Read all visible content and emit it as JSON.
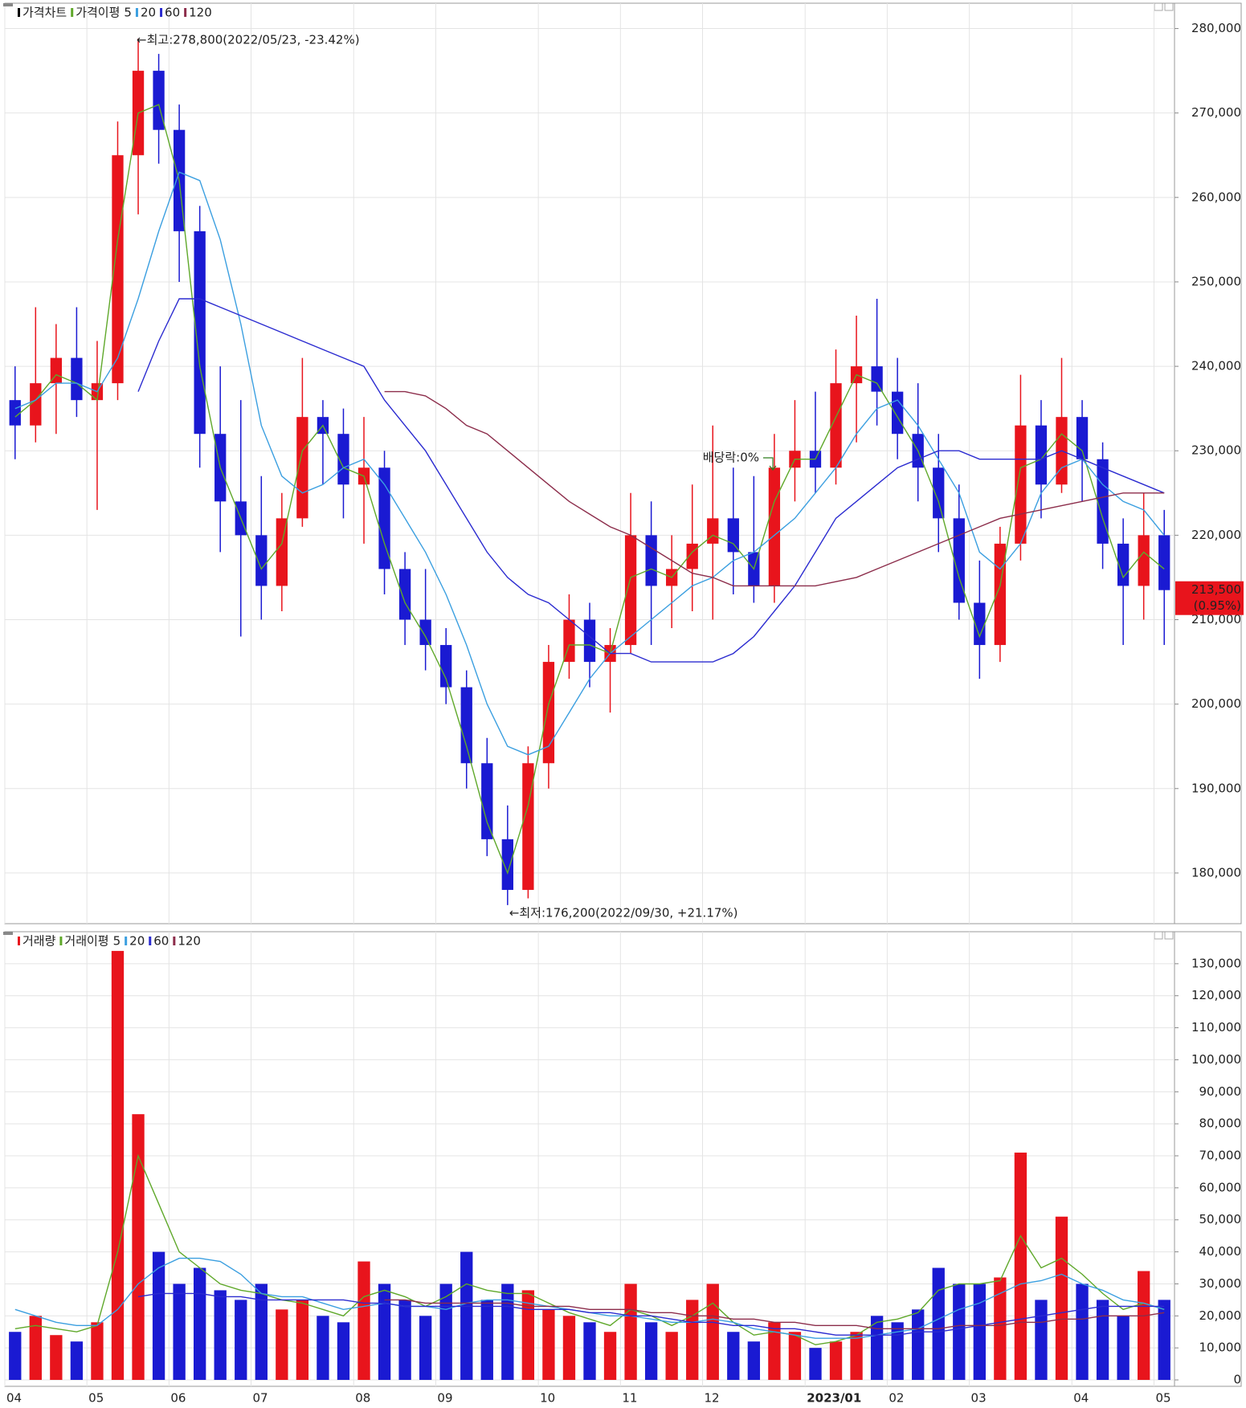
{
  "chart_data": [
    {
      "type": "candlestick",
      "title": "가격차트",
      "ma_title": "가격이평",
      "categories": [
        "04",
        null,
        null,
        null,
        "05",
        null,
        null,
        null,
        "06",
        null,
        null,
        null,
        "07",
        null,
        null,
        null,
        null,
        "08",
        null,
        null,
        null,
        "09",
        null,
        null,
        null,
        null,
        "10",
        null,
        null,
        null,
        "11",
        null,
        null,
        null,
        "12",
        null,
        null,
        null,
        null,
        "2023/01",
        null,
        null,
        null,
        "02",
        null,
        null,
        null,
        "03",
        null,
        null,
        null,
        null,
        "04",
        null,
        null,
        null,
        "05"
      ],
      "open": [
        236000,
        233000,
        238000,
        241000,
        236000,
        238000,
        265000,
        275000,
        268000,
        256000,
        232000,
        224000,
        220000,
        214000,
        222000,
        234000,
        232000,
        226000,
        228000,
        216000,
        210000,
        207000,
        202000,
        193000,
        184000,
        178000,
        193000,
        205000,
        210000,
        205000,
        207000,
        220000,
        214000,
        216000,
        219000,
        222000,
        218000,
        214000,
        228000,
        230000,
        228000,
        238000,
        240000,
        237000,
        232000,
        228000,
        222000,
        212000,
        207000,
        219000,
        233000,
        226000,
        234000,
        229000,
        219000,
        214000,
        220000
      ],
      "high": [
        240000,
        247000,
        245000,
        247000,
        243000,
        269000,
        278800,
        277000,
        271000,
        259000,
        240000,
        236000,
        227000,
        225000,
        241000,
        236000,
        235000,
        234000,
        230000,
        218000,
        216000,
        209000,
        204000,
        196000,
        188000,
        195000,
        207000,
        213000,
        212000,
        209000,
        225000,
        224000,
        220000,
        226000,
        233000,
        228000,
        227000,
        232000,
        236000,
        237000,
        242000,
        246000,
        248000,
        241000,
        238000,
        232000,
        226000,
        217000,
        221000,
        239000,
        236000,
        241000,
        236000,
        231000,
        222000,
        225000,
        223000
      ],
      "low": [
        229000,
        231000,
        232000,
        234000,
        223000,
        236000,
        258000,
        264000,
        250000,
        228000,
        218000,
        208000,
        210000,
        211000,
        221000,
        226000,
        222000,
        219000,
        213000,
        207000,
        204000,
        200000,
        190000,
        182000,
        176200,
        177000,
        190000,
        203000,
        202000,
        199000,
        206000,
        207000,
        209000,
        211000,
        210000,
        213000,
        212000,
        212000,
        224000,
        225000,
        226000,
        231000,
        233000,
        229000,
        224000,
        218000,
        210000,
        203000,
        205000,
        217000,
        222000,
        225000,
        224000,
        216000,
        207000,
        210000,
        207000
      ],
      "close": [
        233000,
        238000,
        241000,
        236000,
        238000,
        265000,
        275000,
        268000,
        256000,
        232000,
        224000,
        220000,
        214000,
        222000,
        234000,
        232000,
        226000,
        228000,
        216000,
        210000,
        207000,
        202000,
        193000,
        184000,
        178000,
        193000,
        205000,
        210000,
        205000,
        207000,
        220000,
        214000,
        216000,
        219000,
        222000,
        218000,
        214000,
        228000,
        230000,
        228000,
        238000,
        240000,
        237000,
        232000,
        228000,
        222000,
        212000,
        207000,
        219000,
        233000,
        226000,
        234000,
        229000,
        219000,
        214000,
        220000,
        213500
      ],
      "up_color": "#e8141c",
      "down_color": "#1a1ad2",
      "series": [
        {
          "name": "5",
          "color": "#5fa82a",
          "values": [
            234000,
            236000,
            239000,
            238000,
            236000,
            255000,
            270000,
            271000,
            262000,
            240000,
            228000,
            222000,
            216000,
            219000,
            230000,
            233000,
            228000,
            227000,
            219000,
            212000,
            208000,
            203000,
            195000,
            186000,
            180000,
            188000,
            200000,
            207000,
            207000,
            206000,
            215000,
            216000,
            215000,
            218000,
            220000,
            219000,
            216000,
            224000,
            229000,
            229000,
            234000,
            239000,
            238000,
            234000,
            230000,
            224000,
            215000,
            208000,
            214000,
            228000,
            229000,
            232000,
            230000,
            222000,
            215000,
            218000,
            216000
          ]
        },
        {
          "name": "20",
          "color": "#3b9fe0",
          "values": [
            235000,
            236000,
            238000,
            238000,
            237000,
            241000,
            248000,
            256000,
            263000,
            262000,
            255000,
            245000,
            233000,
            227000,
            225000,
            226000,
            228000,
            229000,
            226000,
            222000,
            218000,
            213000,
            207000,
            200000,
            195000,
            194000,
            195000,
            199000,
            203000,
            206000,
            208000,
            210000,
            212000,
            214000,
            215000,
            217000,
            218000,
            220000,
            222000,
            225000,
            228000,
            232000,
            235000,
            236000,
            233000,
            229000,
            225000,
            218000,
            216000,
            219000,
            225000,
            228000,
            229000,
            226000,
            224000,
            223000,
            220000
          ]
        },
        {
          "name": "60",
          "color": "#2b2bd0",
          "values": [
            null,
            null,
            null,
            null,
            null,
            null,
            237000,
            243000,
            248000,
            248000,
            247000,
            246000,
            245000,
            244000,
            243000,
            242000,
            241000,
            240000,
            236000,
            233000,
            230000,
            226000,
            222000,
            218000,
            215000,
            213000,
            212000,
            210000,
            208000,
            206000,
            206000,
            205000,
            205000,
            205000,
            205000,
            206000,
            208000,
            211000,
            214000,
            218000,
            222000,
            224000,
            226000,
            228000,
            229000,
            230000,
            230000,
            229000,
            229000,
            229000,
            229000,
            230000,
            229000,
            228000,
            227000,
            226000,
            225000
          ]
        },
        {
          "name": "120",
          "color": "#8c2d4b",
          "values": [
            null,
            null,
            null,
            null,
            null,
            null,
            null,
            null,
            null,
            null,
            null,
            null,
            null,
            null,
            null,
            null,
            null,
            null,
            237000,
            237000,
            236500,
            235000,
            233000,
            232000,
            230000,
            228000,
            226000,
            224000,
            222500,
            221000,
            220000,
            218500,
            217000,
            215500,
            215000,
            214000,
            214000,
            214000,
            214000,
            214000,
            214500,
            215000,
            216000,
            217000,
            218000,
            219000,
            220000,
            221000,
            222000,
            222500,
            223000,
            223500,
            224000,
            224500,
            225000,
            225000,
            225000
          ]
        }
      ],
      "ylim": [
        174000,
        283000
      ],
      "yticks": [
        {
          "value": 180000,
          "label": "180,000"
        },
        {
          "value": 190000,
          "label": "190,000"
        },
        {
          "value": 200000,
          "label": "200,000"
        },
        {
          "value": 210000,
          "label": "210,000"
        },
        {
          "value": 220000,
          "label": "220,000"
        },
        {
          "value": 230000,
          "label": "230,000"
        },
        {
          "value": 240000,
          "label": "240,000"
        },
        {
          "value": 250000,
          "label": "250,000"
        },
        {
          "value": 260000,
          "label": "260,000"
        },
        {
          "value": 270000,
          "label": "270,000"
        },
        {
          "value": 280000,
          "label": "280,000"
        }
      ],
      "grid": true,
      "annotations": {
        "high": "←최고:278,800(2022/05/23, -23.42%)",
        "low": "←최저:176,200(2022/09/30, +21.17%)",
        "dividend": "배당락:0%"
      },
      "last_price": {
        "value": 213500,
        "label": "213,500"
      },
      "last_change": "(0.95%)"
    },
    {
      "type": "bar",
      "title": "거래량",
      "ma_title": "거래이평",
      "values": [
        15000,
        20000,
        14000,
        12000,
        18000,
        134000,
        83000,
        40000,
        30000,
        35000,
        28000,
        25000,
        30000,
        22000,
        25000,
        20000,
        18000,
        37000,
        30000,
        25000,
        20000,
        30000,
        40000,
        25000,
        30000,
        28000,
        22000,
        20000,
        18000,
        15000,
        30000,
        18000,
        15000,
        25000,
        30000,
        15000,
        12000,
        18000,
        15000,
        10000,
        12000,
        15000,
        20000,
        18000,
        22000,
        35000,
        30000,
        30000,
        32000,
        71000,
        25000,
        51000,
        30000,
        25000,
        20000,
        34000,
        25000
      ],
      "series": [
        {
          "name": "5",
          "color": "#5fa82a",
          "values": [
            16000,
            17000,
            16000,
            15000,
            17000,
            40000,
            70000,
            55000,
            40000,
            35000,
            30000,
            28000,
            27000,
            25000,
            24000,
            22000,
            20000,
            26000,
            28000,
            26000,
            23000,
            26000,
            30000,
            28000,
            27000,
            27000,
            24000,
            21000,
            19000,
            17000,
            22000,
            20000,
            17000,
            20000,
            24000,
            18000,
            14000,
            15000,
            14000,
            11000,
            12000,
            14000,
            18000,
            19000,
            21000,
            28000,
            30000,
            30000,
            31000,
            45000,
            35000,
            38000,
            33000,
            27000,
            22000,
            24000,
            22000
          ]
        },
        {
          "name": "20",
          "color": "#3b9fe0",
          "values": [
            22000,
            20000,
            18000,
            17000,
            17000,
            22000,
            30000,
            35000,
            38000,
            38000,
            37000,
            33000,
            27000,
            26000,
            26000,
            24000,
            22000,
            23000,
            24000,
            23000,
            23000,
            22000,
            24000,
            25000,
            25000,
            24000,
            23000,
            22000,
            21000,
            20000,
            20000,
            19000,
            18000,
            18000,
            19000,
            18000,
            16000,
            15000,
            14000,
            13000,
            13000,
            13000,
            14000,
            15000,
            16000,
            19000,
            22000,
            24000,
            27000,
            30000,
            31000,
            33000,
            30000,
            28000,
            25000,
            24000,
            22000
          ]
        },
        {
          "name": "60",
          "color": "#2b2bd0",
          "values": [
            null,
            null,
            null,
            null,
            null,
            null,
            26000,
            27000,
            27000,
            27000,
            26000,
            26000,
            25000,
            25000,
            25000,
            25000,
            25000,
            24000,
            24000,
            23000,
            23000,
            23000,
            23000,
            23000,
            23000,
            22000,
            22000,
            22000,
            21000,
            21000,
            20000,
            20000,
            19000,
            18000,
            18000,
            17000,
            17000,
            16000,
            16000,
            15000,
            14000,
            14000,
            14000,
            14000,
            15000,
            15000,
            16000,
            17000,
            18000,
            19000,
            20000,
            21000,
            22000,
            23000,
            23000,
            23000,
            23000
          ]
        },
        {
          "name": "120",
          "color": "#8c2d4b",
          "values": [
            null,
            null,
            null,
            null,
            null,
            null,
            null,
            null,
            null,
            null,
            null,
            null,
            null,
            null,
            null,
            null,
            null,
            null,
            25000,
            25000,
            24000,
            24000,
            24000,
            24000,
            24000,
            23000,
            23000,
            23000,
            22000,
            22000,
            22000,
            21000,
            21000,
            20000,
            20000,
            19000,
            19000,
            18000,
            18000,
            17000,
            17000,
            17000,
            16000,
            16000,
            16000,
            16000,
            17000,
            17000,
            17000,
            18000,
            18000,
            19000,
            19000,
            20000,
            20000,
            20000,
            21000
          ]
        }
      ],
      "ylim": [
        -2000,
        140000
      ],
      "yticks": [
        0,
        {
          "value": 10000,
          "label": "10,000"
        },
        {
          "value": 20000,
          "label": "20,000"
        },
        {
          "value": 30000,
          "label": "30,000"
        },
        {
          "value": 40000,
          "label": "40,000"
        },
        {
          "value": 50000,
          "label": "50,000"
        },
        {
          "value": 60000,
          "label": "60,000"
        },
        {
          "value": 70000,
          "label": "70,000"
        },
        {
          "value": 80000,
          "label": "80,000"
        },
        {
          "value": 90000,
          "label": "90,000"
        },
        {
          "value": 100000,
          "label": "100,000"
        },
        {
          "value": 110000,
          "label": "110,000"
        },
        {
          "value": 120000,
          "label": "120,000"
        },
        {
          "value": 130000,
          "label": "130,000"
        }
      ],
      "grid": true
    }
  ]
}
